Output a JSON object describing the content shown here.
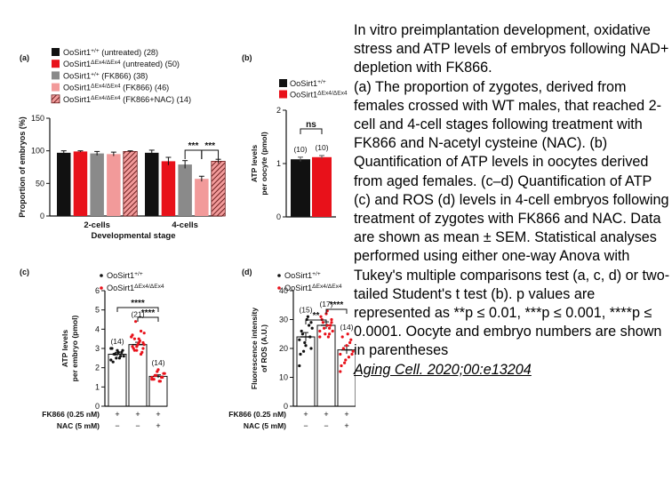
{
  "caption": {
    "title": "In vitro preimplantation development, oxidative stress and ATP levels of embryos following NAD+ depletion with FK866.",
    "body": "(a) The proportion of zygotes, derived from females crossed with WT males, that reached 2-cell and 4-cell stages following treatment with FK866 and N-acetyl cysteine (NAC). (b) Quantification of ATP levels in oocytes derived from aged females. (c–d) Quantification of ATP (c) and ROS (d) levels in 4-cell embryos following treatment of zygotes with FK866 and NAC. Data are shown as mean ± SEM. Statistical analyses performed using either one-way Anova with Tukey's multiple comparisons test (a, c, d) or two-tailed Student's t test (b). p values are represented as **p ≤ 0.01, ***p ≤ 0.001, ****p ≤ 0.0001. Oocyte and embryo numbers are shown in parentheses",
    "citation": "Aging Cell. 2020;00:e13204"
  },
  "colors": {
    "black": "#111111",
    "red": "#e8111a",
    "gray": "#8a8a8a",
    "pink": "#f29a9a",
    "hatch": "#6b1f1f"
  },
  "chart_data": [
    {
      "panel": "(a)",
      "type": "bar",
      "categories": [
        "2-cells",
        "4-cells"
      ],
      "xlabel": "Developmental stage",
      "ylabel": "Proportion of embryos (%)",
      "ylim": [
        0,
        150
      ],
      "yticks": [
        "0",
        "50",
        "100",
        "150"
      ],
      "legend": [
        {
          "prefix": "OoSirt1",
          "sup": "+/+",
          "suffix": " (untreated) (28)"
        },
        {
          "prefix": "OoSirt1",
          "sup": "ΔEx4/ΔEx4",
          "suffix": " (untreated) (50)"
        },
        {
          "prefix": "OoSirt1",
          "sup": "+/+",
          "suffix": " (FK866) (38)"
        },
        {
          "prefix": "OoSirt1",
          "sup": "ΔEx4/ΔEx4",
          "suffix": " (FK866) (46)"
        },
        {
          "prefix": "OoSirt1",
          "sup": "ΔEx4/ΔEx4",
          "suffix": " (FK866+NAC) (14)"
        }
      ],
      "series": [
        {
          "values": [
            97,
            97
          ],
          "errors": [
            3,
            4
          ]
        },
        {
          "values": [
            99,
            84
          ],
          "errors": [
            1,
            6
          ]
        },
        {
          "values": [
            96,
            79
          ],
          "errors": [
            3,
            6
          ]
        },
        {
          "values": [
            95,
            57
          ],
          "errors": [
            3,
            4
          ]
        },
        {
          "values": [
            99,
            84
          ],
          "errors": [
            1,
            3
          ]
        }
      ],
      "significance": [
        {
          "between": [
            2,
            3
          ],
          "label": "***"
        },
        {
          "between": [
            3,
            4
          ],
          "label": "***"
        }
      ]
    },
    {
      "panel": "(b)",
      "type": "bar",
      "ylabel": "ATP levels per oocyte (pmol)",
      "ylim": [
        0,
        2
      ],
      "yticks": [
        "0",
        "1",
        "2"
      ],
      "legend": [
        {
          "prefix": "OoSirt1",
          "sup": "+/+",
          "suffix": ""
        },
        {
          "prefix": "OoSirt1",
          "sup": "ΔEx4/ΔEx4",
          "suffix": ""
        }
      ],
      "values": [
        1.08,
        1.12
      ],
      "errors": [
        0.04,
        0.03
      ],
      "counts": [
        "(10)",
        "(10)"
      ],
      "significance": {
        "label": "ns"
      }
    },
    {
      "panel": "(c)",
      "type": "bar",
      "ylabel": "ATP levels per embryo (pmol)",
      "ylim": [
        0,
        6
      ],
      "yticks": [
        "0",
        "1",
        "2",
        "3",
        "4",
        "5",
        "6"
      ],
      "legend": [
        {
          "prefix": "OoSirt1",
          "sup": "+/+",
          "suffix": ""
        },
        {
          "prefix": "OoSirt1",
          "sup": "ΔEx4/ΔEx4",
          "suffix": ""
        }
      ],
      "values": [
        2.7,
        3.2,
        1.55
      ],
      "errors": [
        0.1,
        0.12,
        0.08
      ],
      "counts": [
        "(14)",
        "(21)",
        "(14)"
      ],
      "points": [
        [
          2.4,
          2.9,
          2.6,
          2.8,
          2.5,
          2.7,
          3.0,
          2.6,
          2.8,
          2.5,
          2.9,
          2.7,
          2.3,
          3.0
        ],
        [
          3.6,
          3.0,
          3.9,
          3.3,
          2.9,
          3.5,
          3.1,
          3.8,
          2.8,
          3.4,
          3.2,
          4.4,
          3.0,
          3.6,
          3.3,
          2.7,
          3.5,
          3.1,
          2.9,
          3.7,
          3.2
        ],
        [
          1.4,
          1.7,
          1.5,
          1.3,
          1.8,
          1.6,
          1.4,
          1.7,
          1.5,
          1.3,
          1.9,
          1.6,
          1.4,
          1.5
        ]
      ],
      "point_series": [
        0,
        1,
        1
      ],
      "significance": [
        {
          "between": [
            0,
            2
          ],
          "label": "****"
        },
        {
          "between": [
            1,
            2
          ],
          "label": "****"
        }
      ],
      "treatments": [
        {
          "label": "FK866 (0.25 nM)",
          "values": [
            "+",
            "+",
            "+"
          ]
        },
        {
          "label": "NAC (5 mM)",
          "values": [
            "−",
            "−",
            "+"
          ]
        }
      ]
    },
    {
      "panel": "(d)",
      "type": "bar",
      "ylabel": "Fluorescence intensity of ROS (A.U.)",
      "ylim": [
        0,
        40
      ],
      "yticks": [
        "0",
        "10",
        "20",
        "30",
        "40"
      ],
      "legend": [
        {
          "prefix": "OoSirt1",
          "sup": "+/+",
          "suffix": ""
        },
        {
          "prefix": "OoSirt1",
          "sup": "ΔEx4/ΔEx4",
          "suffix": ""
        }
      ],
      "values": [
        24,
        28,
        19.5
      ],
      "errors": [
        1.5,
        1.2,
        1.4
      ],
      "counts": [
        "(15)",
        "(17)",
        "(14)"
      ],
      "points": [
        [
          14,
          20,
          28,
          30,
          22,
          25,
          18,
          27,
          24,
          31,
          21,
          19,
          26,
          23,
          29
        ],
        [
          24,
          30,
          27,
          33,
          25,
          29,
          31,
          26,
          28,
          24,
          32,
          27,
          30,
          26,
          29,
          25,
          28
        ],
        [
          12,
          18,
          22,
          25,
          16,
          20,
          14,
          19,
          23,
          17,
          21,
          15,
          24,
          18
        ]
      ],
      "point_series": [
        0,
        1,
        1
      ],
      "significance": [
        {
          "between": [
            0,
            1
          ],
          "label": "**"
        },
        {
          "between": [
            1,
            2
          ],
          "label": "****"
        }
      ],
      "treatments": [
        {
          "label": "FK866 (0.25 nM)",
          "values": [
            "+",
            "+",
            "+"
          ]
        },
        {
          "label": "NAC (5 mM)",
          "values": [
            "−",
            "−",
            "+"
          ]
        }
      ]
    }
  ]
}
